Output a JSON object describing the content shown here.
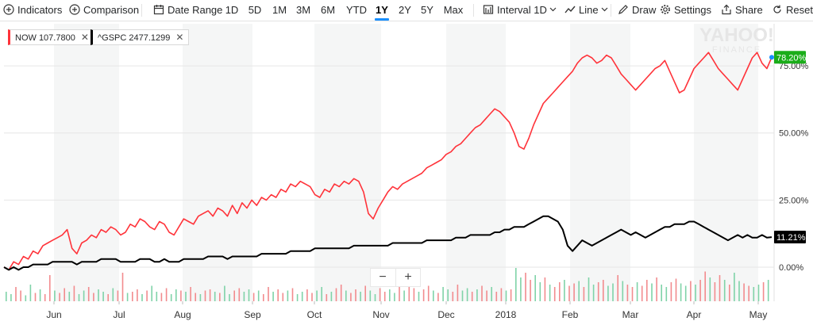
{
  "toolbar": {
    "indicators": "Indicators",
    "comparison": "Comparison",
    "date_range": "Date Range",
    "ranges": [
      "1D",
      "5D",
      "1M",
      "3M",
      "6M",
      "YTD",
      "1Y",
      "2Y",
      "5Y",
      "Max"
    ],
    "active_range": "1Y",
    "interval": "Interval 1D",
    "chart_type": "Line",
    "draw": "Draw",
    "settings": "Settings",
    "share": "Share",
    "reset": "Reset"
  },
  "legend_chips": [
    {
      "label": "NOW 107.7800",
      "color": "#ff333a"
    },
    {
      "label": "^GSPC 2477.1299",
      "color": "#000000"
    }
  ],
  "watermark": {
    "line1": "YAHOO!",
    "line2": "FINANCE"
  },
  "zoom": {
    "minus": "−",
    "plus": "+"
  },
  "chart_data": {
    "type": "line",
    "y_unit": "% change",
    "ylim": [
      -5,
      85
    ],
    "y_ticks": [
      0,
      25,
      50,
      75
    ],
    "y_tick_labels": [
      "0.00%",
      "25.00%",
      "50.00%",
      "75.00%"
    ],
    "x_labels": [
      "Jun",
      "Jul",
      "Aug",
      "Sep",
      "Oct",
      "Nov",
      "Dec",
      "2018",
      "Feb",
      "Mar",
      "Apr",
      "May"
    ],
    "last_values": [
      {
        "series": "NOW",
        "label": "78.20%",
        "color": "#1aad19"
      },
      {
        "series": "^GSPC",
        "label": "11.21%",
        "color": "#000000"
      }
    ],
    "series": [
      {
        "name": "NOW",
        "color": "#ff333a",
        "values": [
          0,
          -1,
          2,
          1,
          4,
          3,
          6,
          5,
          8,
          9,
          10,
          11,
          12,
          14,
          7,
          5,
          9,
          10,
          12,
          11,
          14,
          13,
          15,
          14,
          12,
          13,
          16,
          15,
          18,
          17,
          15,
          14,
          17,
          16,
          13,
          12,
          15,
          18,
          17,
          16,
          19,
          20,
          21,
          19,
          22,
          21,
          19,
          23,
          20,
          24,
          22,
          25,
          23,
          26,
          25,
          27,
          26,
          29,
          28,
          31,
          30,
          32,
          31,
          30,
          27,
          26,
          29,
          28,
          31,
          30,
          32,
          31,
          33,
          32,
          28,
          20,
          18,
          22,
          25,
          28,
          30,
          29,
          31,
          32,
          33,
          34,
          35,
          37,
          38,
          39,
          40,
          42,
          43,
          45,
          46,
          48,
          50,
          52,
          53,
          55,
          57,
          59,
          58,
          56,
          54,
          50,
          45,
          44,
          48,
          53,
          57,
          61,
          63,
          65,
          67,
          69,
          71,
          73,
          76,
          78,
          79,
          78,
          76,
          77,
          79,
          78,
          75,
          72,
          70,
          68,
          66,
          68,
          70,
          72,
          74,
          75,
          77,
          73,
          69,
          65,
          66,
          70,
          74,
          76,
          78,
          80,
          77,
          74,
          72,
          70,
          68,
          66,
          70,
          74,
          78,
          80,
          76,
          74,
          78.2
        ]
      },
      {
        "name": "^GSPC",
        "values": [
          0,
          -1,
          0,
          -1,
          0,
          0,
          1,
          1,
          1,
          1,
          2,
          2,
          2,
          2,
          2,
          1,
          2,
          2,
          2,
          2,
          3,
          3,
          3,
          3,
          2,
          2,
          2,
          2,
          3,
          3,
          3,
          2,
          2,
          3,
          2,
          2,
          2,
          3,
          3,
          3,
          3,
          3,
          4,
          4,
          4,
          4,
          3,
          4,
          4,
          4,
          4,
          4,
          4,
          5,
          5,
          5,
          5,
          5,
          5,
          6,
          6,
          6,
          6,
          6,
          7,
          7,
          7,
          7,
          7,
          7,
          7,
          7,
          8,
          8,
          8,
          8,
          8,
          8,
          8,
          8,
          9,
          9,
          9,
          9,
          9,
          9,
          9,
          10,
          10,
          10,
          10,
          10,
          10,
          11,
          11,
          11,
          12,
          12,
          12,
          12,
          12,
          13,
          13,
          14,
          14,
          15,
          15,
          15,
          16,
          17,
          18,
          19,
          19,
          18,
          17,
          14,
          8,
          6,
          8,
          10,
          9,
          8,
          9,
          10,
          11,
          12,
          13,
          14,
          13,
          12,
          13,
          12,
          11,
          12,
          13,
          14,
          15,
          15,
          16,
          16,
          16,
          17,
          17,
          16,
          15,
          14,
          13,
          12,
          11,
          10,
          11,
          12,
          11,
          12,
          11,
          11,
          12,
          11,
          11.21
        ]
      }
    ],
    "volume": [
      8,
      6,
      12,
      9,
      5,
      14,
      7,
      10,
      6,
      22,
      9,
      7,
      11,
      8,
      13,
      6,
      9,
      12,
      7,
      10,
      8,
      6,
      11,
      9,
      24,
      7,
      8,
      10,
      6,
      9,
      13,
      8,
      7,
      11,
      6,
      10,
      9,
      8,
      12,
      7,
      6,
      9,
      10,
      8,
      7,
      13,
      6,
      9,
      11,
      8,
      10,
      7,
      9,
      6,
      12,
      8,
      10,
      7,
      9,
      11,
      6,
      8,
      10,
      7,
      9,
      12,
      6,
      8,
      11,
      14,
      9,
      7,
      10,
      8,
      13,
      9,
      6,
      11,
      8,
      10,
      7,
      12,
      9,
      18,
      11,
      8,
      10,
      13,
      9,
      7,
      12,
      10,
      8,
      14,
      9,
      11,
      8,
      10,
      13,
      9,
      12,
      8,
      11,
      9,
      10,
      28,
      20,
      24,
      18,
      22,
      16,
      20,
      14,
      12,
      16,
      18,
      13,
      15,
      17,
      12,
      20,
      14,
      16,
      18,
      13,
      15,
      22,
      17,
      14,
      12,
      16,
      13,
      18,
      15,
      20,
      14,
      12,
      16,
      19,
      15,
      13,
      17,
      14,
      18,
      25,
      20,
      16,
      22,
      18,
      14,
      24,
      17,
      15,
      13,
      12,
      14,
      16,
      18
    ]
  }
}
